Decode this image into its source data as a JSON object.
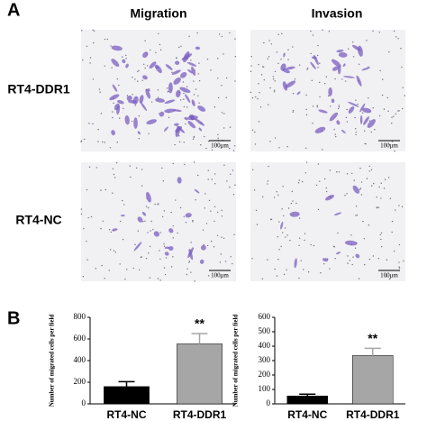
{
  "panel_a": {
    "label": "A",
    "columns": [
      "Migration",
      "Invasion"
    ],
    "rows": [
      "RT4-DDR1",
      "RT4-NC"
    ],
    "scale_bar": "100μm"
  },
  "panel_b": {
    "label": "B"
  },
  "chart_data": [
    {
      "type": "bar",
      "ylabel": "Number of migrated cells per field",
      "categories": [
        "RT4-NC",
        "RT4-DDR1"
      ],
      "values": [
        160,
        555
      ],
      "errors": [
        45,
        95
      ],
      "colors": [
        "#000000",
        "#a6a6a6"
      ],
      "ylim": [
        0,
        800
      ],
      "yticks": [
        0,
        200,
        400,
        600,
        800
      ],
      "annotation": "**"
    },
    {
      "type": "bar",
      "ylabel": "Number of migrated cells per field",
      "categories": [
        "RT4-NC",
        "RT4-DDR1"
      ],
      "values": [
        55,
        335
      ],
      "errors": [
        12,
        50
      ],
      "colors": [
        "#000000",
        "#a6a6a6"
      ],
      "ylim": [
        0,
        600
      ],
      "yticks": [
        0,
        100,
        200,
        300,
        400,
        500,
        600
      ],
      "annotation": "**"
    }
  ]
}
